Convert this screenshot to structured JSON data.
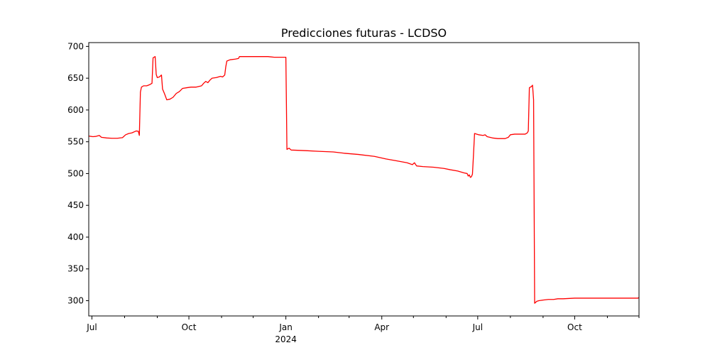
{
  "chart_data": {
    "type": "line",
    "title": "Predicciones futuras - LCDSO",
    "xlabel": "",
    "ylabel": "",
    "grid": false,
    "legend": "none",
    "xlim": [
      "2023-06-28",
      "2024-12-01"
    ],
    "ylim": [
      276,
      706
    ],
    "y_ticks": [
      300,
      350,
      400,
      450,
      500,
      550,
      600,
      650,
      700
    ],
    "x_ticks": [
      {
        "date": "2023-07-01",
        "label": "Jul",
        "sublabel": ""
      },
      {
        "date": "2023-10-01",
        "label": "Oct",
        "sublabel": ""
      },
      {
        "date": "2024-01-01",
        "label": "Jan",
        "sublabel": "2024"
      },
      {
        "date": "2024-04-01",
        "label": "Apr",
        "sublabel": ""
      },
      {
        "date": "2024-07-01",
        "label": "Jul",
        "sublabel": ""
      },
      {
        "date": "2024-10-01",
        "label": "Oct",
        "sublabel": ""
      }
    ],
    "x_minor_ticks": [
      "2023-08-01",
      "2023-09-01",
      "2023-11-01",
      "2023-12-01",
      "2024-02-01",
      "2024-03-01",
      "2024-05-01",
      "2024-06-01",
      "2024-08-01",
      "2024-09-01",
      "2024-11-01",
      "2024-12-01"
    ],
    "series": [
      {
        "color": "#ff0000",
        "points": [
          [
            "2023-06-28",
            559
          ],
          [
            "2023-07-02",
            558
          ],
          [
            "2023-07-05",
            558.5
          ],
          [
            "2023-07-08",
            560
          ],
          [
            "2023-07-10",
            557
          ],
          [
            "2023-07-15",
            556
          ],
          [
            "2023-07-20",
            555.5
          ],
          [
            "2023-07-25",
            555.5
          ],
          [
            "2023-07-30",
            556.5
          ],
          [
            "2023-08-02",
            561
          ],
          [
            "2023-08-05",
            563
          ],
          [
            "2023-08-08",
            564
          ],
          [
            "2023-08-12",
            567
          ],
          [
            "2023-08-14",
            566.5
          ],
          [
            "2023-08-15",
            560
          ],
          [
            "2023-08-16",
            628
          ],
          [
            "2023-08-17",
            636
          ],
          [
            "2023-08-19",
            638
          ],
          [
            "2023-08-22",
            638
          ],
          [
            "2023-08-25",
            640
          ],
          [
            "2023-08-27",
            642
          ],
          [
            "2023-08-28",
            682
          ],
          [
            "2023-08-30",
            684
          ],
          [
            "2023-08-31",
            656
          ],
          [
            "2023-09-01",
            651
          ],
          [
            "2023-09-03",
            652
          ],
          [
            "2023-09-05",
            655
          ],
          [
            "2023-09-06",
            633
          ],
          [
            "2023-09-08",
            625
          ],
          [
            "2023-09-10",
            616
          ],
          [
            "2023-09-13",
            617
          ],
          [
            "2023-09-16",
            620
          ],
          [
            "2023-09-19",
            626
          ],
          [
            "2023-09-22",
            629
          ],
          [
            "2023-09-25",
            634
          ],
          [
            "2023-09-29",
            635
          ],
          [
            "2023-10-03",
            636
          ],
          [
            "2023-10-08",
            636
          ],
          [
            "2023-10-13",
            638
          ],
          [
            "2023-10-15",
            642
          ],
          [
            "2023-10-17",
            645
          ],
          [
            "2023-10-19",
            643
          ],
          [
            "2023-10-21",
            647
          ],
          [
            "2023-10-23",
            650
          ],
          [
            "2023-10-27",
            651
          ],
          [
            "2023-10-31",
            653
          ],
          [
            "2023-11-02",
            652
          ],
          [
            "2023-11-04",
            655
          ],
          [
            "2023-11-05",
            668
          ],
          [
            "2023-11-06",
            677
          ],
          [
            "2023-11-09",
            679
          ],
          [
            "2023-11-14",
            680
          ],
          [
            "2023-11-17",
            681
          ],
          [
            "2023-11-18",
            684
          ],
          [
            "2023-11-21",
            684
          ],
          [
            "2023-12-01",
            684
          ],
          [
            "2023-12-15",
            684
          ],
          [
            "2023-12-21",
            683
          ],
          [
            "2023-12-31",
            683
          ],
          [
            "2024-01-01",
            683
          ],
          [
            "2024-01-02",
            538
          ],
          [
            "2024-01-04",
            540
          ],
          [
            "2024-01-06",
            537
          ],
          [
            "2024-01-20",
            536
          ],
          [
            "2024-02-01",
            535
          ],
          [
            "2024-02-15",
            534
          ],
          [
            "2024-02-25",
            532
          ],
          [
            "2024-03-10",
            530
          ],
          [
            "2024-03-25",
            527
          ],
          [
            "2024-04-05",
            523
          ],
          [
            "2024-04-15",
            520
          ],
          [
            "2024-04-25",
            517
          ],
          [
            "2024-04-30",
            514
          ],
          [
            "2024-05-02",
            517
          ],
          [
            "2024-05-04",
            512
          ],
          [
            "2024-05-10",
            511
          ],
          [
            "2024-05-20",
            510
          ],
          [
            "2024-05-30",
            508
          ],
          [
            "2024-06-05",
            506
          ],
          [
            "2024-06-12",
            504
          ],
          [
            "2024-06-18",
            501
          ],
          [
            "2024-06-21",
            500
          ],
          [
            "2024-06-22",
            496
          ],
          [
            "2024-06-23",
            498
          ],
          [
            "2024-06-24",
            494
          ],
          [
            "2024-06-25",
            495
          ],
          [
            "2024-06-26",
            499
          ],
          [
            "2024-06-27",
            530
          ],
          [
            "2024-06-28",
            563
          ],
          [
            "2024-07-02",
            561
          ],
          [
            "2024-07-06",
            560
          ],
          [
            "2024-07-08",
            561
          ],
          [
            "2024-07-10",
            558
          ],
          [
            "2024-07-15",
            556
          ],
          [
            "2024-07-20",
            555
          ],
          [
            "2024-07-27",
            555
          ],
          [
            "2024-07-30",
            557
          ],
          [
            "2024-08-01",
            561
          ],
          [
            "2024-08-05",
            562
          ],
          [
            "2024-08-10",
            562
          ],
          [
            "2024-08-15",
            562
          ],
          [
            "2024-08-17",
            564
          ],
          [
            "2024-08-18",
            567
          ],
          [
            "2024-08-19",
            635
          ],
          [
            "2024-08-21",
            637
          ],
          [
            "2024-08-22",
            639
          ],
          [
            "2024-08-23",
            616
          ],
          [
            "2024-08-24",
            296
          ],
          [
            "2024-08-26",
            299
          ],
          [
            "2024-08-28",
            300
          ],
          [
            "2024-09-01",
            301
          ],
          [
            "2024-09-06",
            302
          ],
          [
            "2024-09-11",
            302
          ],
          [
            "2024-09-15",
            303
          ],
          [
            "2024-09-20",
            303
          ],
          [
            "2024-10-01",
            304
          ],
          [
            "2024-10-15",
            304
          ],
          [
            "2024-11-01",
            304
          ],
          [
            "2024-11-15",
            304
          ],
          [
            "2024-11-30",
            304
          ],
          [
            "2024-12-01",
            305
          ]
        ]
      }
    ]
  }
}
